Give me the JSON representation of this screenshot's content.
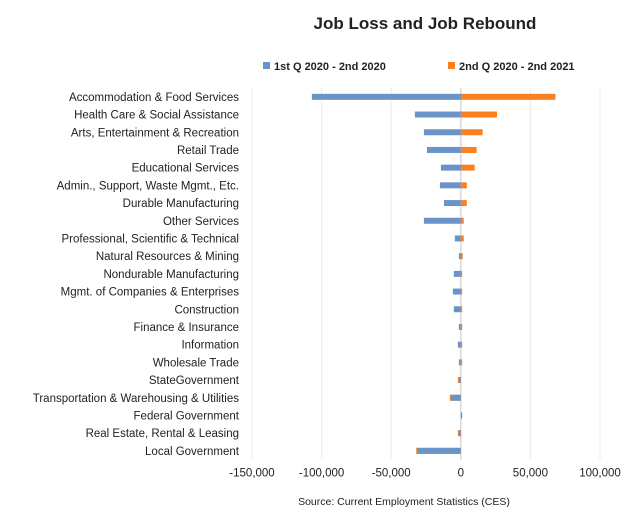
{
  "chart_data": {
    "type": "bar",
    "orientation": "horizontal",
    "title": "Job Loss and Job Rebound",
    "source": "Source: Current Employment Statistics (CES)",
    "categories": [
      "Accommodation & Food Services",
      "Health Care & Social Assistance",
      "Arts, Entertainment & Recreation",
      "Retail Trade",
      "Educational Services",
      "Admin., Support, Waste Mgmt., Etc.",
      "Durable Manufacturing",
      "Other Services",
      "Professional, Scientific & Technical",
      "Natural Resources & Mining",
      "Nondurable Manufacturing",
      "Mgmt. of Companies & Enterprises",
      "Construction",
      "Finance & Insurance",
      "Information",
      "Wholesale Trade",
      "StateGovernment",
      "Transportation & Warehousing & Utilities",
      "Federal Government ",
      "Real Estate, Rental & Leasing",
      "Local Government"
    ],
    "series": [
      {
        "name": "1st Q 2020 - 2nd 2020",
        "color": "#6a93c8",
        "values": [
          -107000,
          -33000,
          -26500,
          -24300,
          -14300,
          -15000,
          -12100,
          -26500,
          -4300,
          -1400,
          -5000,
          -5700,
          -5000,
          -1400,
          -2100,
          -1400,
          -1400,
          -7100,
          1000,
          -1400,
          -31400
        ]
      },
      {
        "name": "2nd Q 2020 - 2nd 2021",
        "color": "#fb8020",
        "values": [
          68000,
          26000,
          15700,
          11400,
          10000,
          4300,
          4300,
          2100,
          2100,
          1400,
          1000,
          1000,
          1000,
          1000,
          1000,
          1000,
          -2100,
          -7900,
          0,
          -2100,
          -32000
        ]
      }
    ],
    "xlim": [
      -150000,
      100000
    ],
    "xticks": [
      -150000,
      -100000,
      -50000,
      0,
      50000,
      100000
    ],
    "xtick_labels": [
      "-150,000",
      "-100,000",
      "-50,000",
      "0",
      "50,000",
      "100,000"
    ],
    "grid": true,
    "legend_position": "top"
  }
}
